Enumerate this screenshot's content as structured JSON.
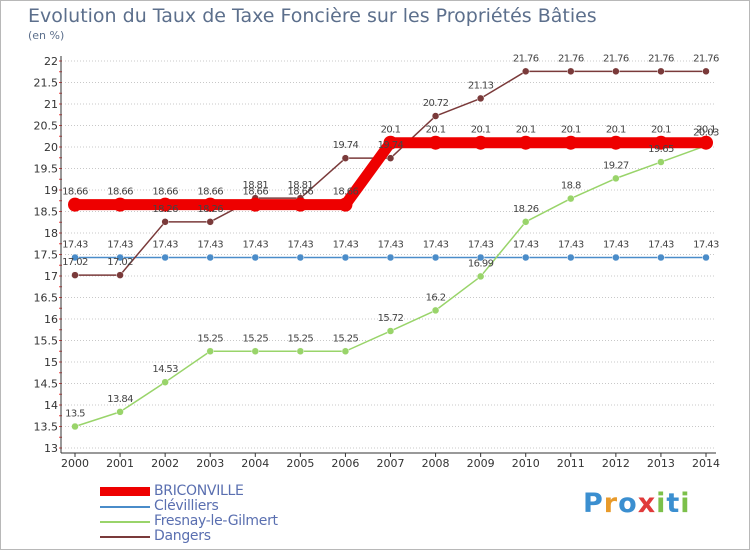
{
  "title": "Evolution du Taux de Taxe Foncière sur les Propriétés Bâties",
  "unit": "(en %)",
  "logo": [
    "P",
    "r",
    "o",
    "x",
    "i",
    "t",
    "i"
  ],
  "colors": {
    "logo": [
      "#3b8fd0",
      "#e89a2a",
      "#3b8fd0",
      "#e03a3a",
      "#7cc04a",
      "#3b8fd0",
      "#7cc04a"
    ],
    "axis": "#333333",
    "grid": "#c8c8c8"
  },
  "chart_data": {
    "type": "line",
    "title": "Evolution du Taux de Taxe Foncière sur les Propriétés Bâties",
    "ylabel": "(en %)",
    "ylim": [
      13,
      22
    ],
    "yticks": [
      "13",
      "13.5",
      "14",
      "14.5",
      "15",
      "15.5",
      "16",
      "16.5",
      "17",
      "17.5",
      "18",
      "18.5",
      "19",
      "19.5",
      "20",
      "20.5",
      "21",
      "21.5",
      "22"
    ],
    "x": [
      "2000",
      "2001",
      "2002",
      "2003",
      "2004",
      "2005",
      "2006",
      "2007",
      "2008",
      "2009",
      "2010",
      "2011",
      "2012",
      "2013",
      "2014"
    ],
    "series": [
      {
        "name": "Clévilliers",
        "color": "#4a8cc9",
        "width": 1.5,
        "r": 3.5,
        "values": [
          17.43,
          17.43,
          17.43,
          17.43,
          17.43,
          17.43,
          17.43,
          17.43,
          17.43,
          17.43,
          17.43,
          17.43,
          17.43,
          17.43,
          17.43
        ],
        "labels": [
          "17.43",
          "17.43",
          "17.43",
          "17.43",
          "17.43",
          "17.43",
          "17.43",
          "17.43",
          "17.43",
          "17.43",
          "17.43",
          "17.43",
          "17.43",
          "17.43",
          "17.43"
        ]
      },
      {
        "name": "Fresnay-le-Gilmert",
        "color": "#99d46a",
        "width": 1.5,
        "r": 3.5,
        "values": [
          13.5,
          13.84,
          14.53,
          15.25,
          15.25,
          15.25,
          15.25,
          15.72,
          16.2,
          16.99,
          18.26,
          18.8,
          19.27,
          19.65,
          20.03
        ],
        "labels": [
          "13.5",
          "13.84",
          "14.53",
          "15.25",
          "15.25",
          "15.25",
          "15.25",
          "15.72",
          "16.2",
          "16.99",
          "18.26",
          "18.8",
          "19.27",
          "19.65",
          "20.03"
        ]
      },
      {
        "name": "Dangers",
        "color": "#7a3a3a",
        "width": 1.5,
        "r": 3.5,
        "values": [
          17.02,
          17.02,
          18.26,
          18.26,
          18.81,
          18.81,
          19.74,
          19.74,
          20.72,
          21.13,
          21.76,
          21.76,
          21.76,
          21.76,
          21.76
        ],
        "labels": [
          "17.02",
          "17.02",
          "18.26",
          "18.26",
          "18.81",
          "18.81",
          "19.74",
          "19.74",
          "20.72",
          "21.13",
          "21.76",
          "21.76",
          "21.76",
          "21.76",
          "21.76"
        ]
      },
      {
        "name": "BRICONVILLE",
        "color": "#ee0000",
        "width": 11,
        "r": 7,
        "values": [
          18.66,
          18.66,
          18.66,
          18.66,
          18.66,
          18.66,
          18.66,
          20.1,
          20.1,
          20.1,
          20.1,
          20.1,
          20.1,
          20.1,
          20.1
        ],
        "labels": [
          "18.66",
          "18.66",
          "18.66",
          "18.66",
          "18.66",
          "18.66",
          "18.66",
          "20.1",
          "20.1",
          "20.1",
          "20.1",
          "20.1",
          "20.1",
          "20.1",
          "20.1"
        ]
      }
    ],
    "legend": [
      "BRICONVILLE",
      "Clévilliers",
      "Fresnay-le-Gilmert",
      "Dangers"
    ]
  }
}
